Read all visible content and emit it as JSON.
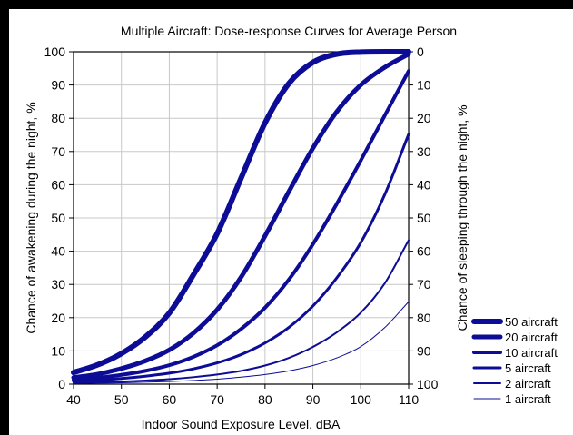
{
  "chart_data": {
    "type": "line",
    "title": "Multiple Aircraft: Dose-response Curves for Average Person",
    "xlabel": "Indoor Sound Exposure Level, dBA",
    "ylabel": "Chance of awakening during the night, %",
    "y2label": "Chance of sleeping through the night, %",
    "xlim": [
      40,
      110
    ],
    "ylim": [
      0,
      100
    ],
    "x_ticks": [
      "40",
      "50",
      "60",
      "70",
      "80",
      "90",
      "100",
      "110"
    ],
    "y_ticks": [
      "0",
      "10",
      "20",
      "30",
      "40",
      "50",
      "60",
      "70",
      "80",
      "90",
      "100"
    ],
    "y2_ticks": [
      "100",
      "90",
      "80",
      "70",
      "60",
      "50",
      "40",
      "30",
      "20",
      "10",
      "0"
    ],
    "grid": true,
    "legend_position": "right",
    "line_color": "#0c0c96",
    "x": [
      40,
      45,
      50,
      55,
      60,
      65,
      70,
      75,
      80,
      85,
      90,
      95,
      100,
      105,
      110
    ],
    "series": [
      {
        "name": "50 aircraft",
        "line_weight": 6,
        "values": [
          3.5,
          5.8,
          9.2,
          14.2,
          21.4,
          32.8,
          45.3,
          62.0,
          78.6,
          90.5,
          96.8,
          99.3,
          99.9,
          100,
          100
        ]
      },
      {
        "name": "20 aircraft",
        "line_weight": 5,
        "values": [
          2.0,
          3.0,
          4.7,
          7.0,
          10.3,
          15.3,
          22.4,
          32.2,
          44.6,
          58.0,
          71.0,
          82.0,
          90.0,
          95.3,
          99.3
        ]
      },
      {
        "name": "10 aircraft",
        "line_weight": 4,
        "values": [
          1.3,
          1.9,
          2.8,
          4.0,
          5.7,
          8.2,
          11.7,
          16.6,
          23.0,
          31.5,
          42.1,
          54.3,
          67.3,
          80.8,
          94.2
        ]
      },
      {
        "name": "5 aircraft",
        "line_weight": 3,
        "values": [
          0.8,
          1.2,
          1.7,
          2.4,
          3.3,
          4.6,
          6.4,
          8.9,
          12.4,
          17.1,
          23.5,
          32.0,
          42.6,
          57.0,
          75.2
        ]
      },
      {
        "name": "2 aircraft",
        "line_weight": 2,
        "values": [
          0.4,
          0.6,
          0.8,
          1.1,
          1.5,
          2.1,
          2.9,
          4.0,
          5.6,
          7.9,
          11.2,
          15.6,
          21.5,
          30.3,
          43.3
        ]
      },
      {
        "name": "1 aircraft",
        "line_weight": 1,
        "values": [
          0.2,
          0.3,
          0.4,
          0.6,
          0.8,
          1.1,
          1.5,
          2.1,
          2.9,
          4.0,
          5.6,
          7.9,
          11.3,
          17.0,
          24.8
        ]
      }
    ]
  }
}
